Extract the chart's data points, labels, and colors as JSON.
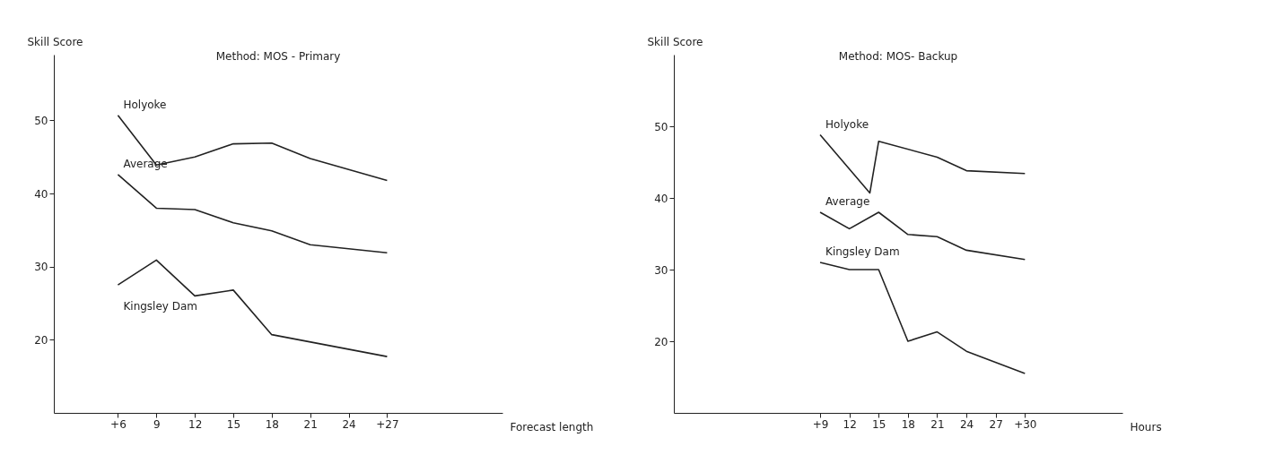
{
  "chart_data": [
    {
      "type": "line",
      "title": "Method: MOS - Primary",
      "xlabel": "Forecast length",
      "ylabel": "Skill Score",
      "x": [
        6,
        9,
        12,
        15,
        18,
        21,
        27
      ],
      "xlim": [
        1,
        36
      ],
      "ylim": [
        10,
        59
      ],
      "xticks": [
        {
          "value": 6,
          "label": "+6"
        },
        9,
        12,
        15,
        18,
        21,
        24,
        {
          "value": 27,
          "label": "+27"
        }
      ],
      "yticks": [
        20,
        30,
        40,
        50
      ],
      "series": [
        {
          "name": "Holyoke",
          "color": "#222222",
          "values": [
            50.7,
            43.9,
            45,
            46.8,
            46.9,
            44.8,
            41.8
          ]
        },
        {
          "name": "Average",
          "color": "#222222",
          "values": [
            42.6,
            38,
            37.8,
            36,
            34.9,
            33,
            31.9
          ]
        },
        {
          "name": "Kingsley Dam",
          "color": "#222222",
          "x": [
            6,
            9,
            12,
            15,
            18,
            27
          ],
          "values": [
            27.5,
            30.9,
            26,
            26.8,
            20.7,
            17.7
          ]
        }
      ]
    },
    {
      "type": "line",
      "title": "Method: MOS- Backup",
      "xlabel": "Hours",
      "ylabel": "Skill Score",
      "x": [
        9,
        12,
        15,
        18,
        21,
        24,
        30
      ],
      "xlim": [
        -6,
        40
      ],
      "ylim": [
        10,
        60
      ],
      "xticks": [
        {
          "value": 9,
          "label": "+9"
        },
        12,
        15,
        18,
        21,
        24,
        27,
        {
          "value": 30,
          "label": "+30"
        }
      ],
      "yticks": [
        20,
        30,
        40,
        50
      ],
      "series": [
        {
          "name": "Holyoke",
          "color": "#222222",
          "x": [
            9,
            14.1,
            15,
            21,
            24,
            30
          ],
          "values": [
            48.8,
            40.7,
            47.9,
            45.7,
            43.8,
            43.4
          ]
        },
        {
          "name": "Average",
          "color": "#222222",
          "values": [
            38,
            35.7,
            38,
            34.9,
            34.6,
            32.7,
            31.4
          ]
        },
        {
          "name": "Kingsley Dam",
          "color": "#222222",
          "values": [
            31,
            30,
            30,
            20,
            21.3,
            18.6,
            15.5
          ]
        }
      ]
    }
  ]
}
